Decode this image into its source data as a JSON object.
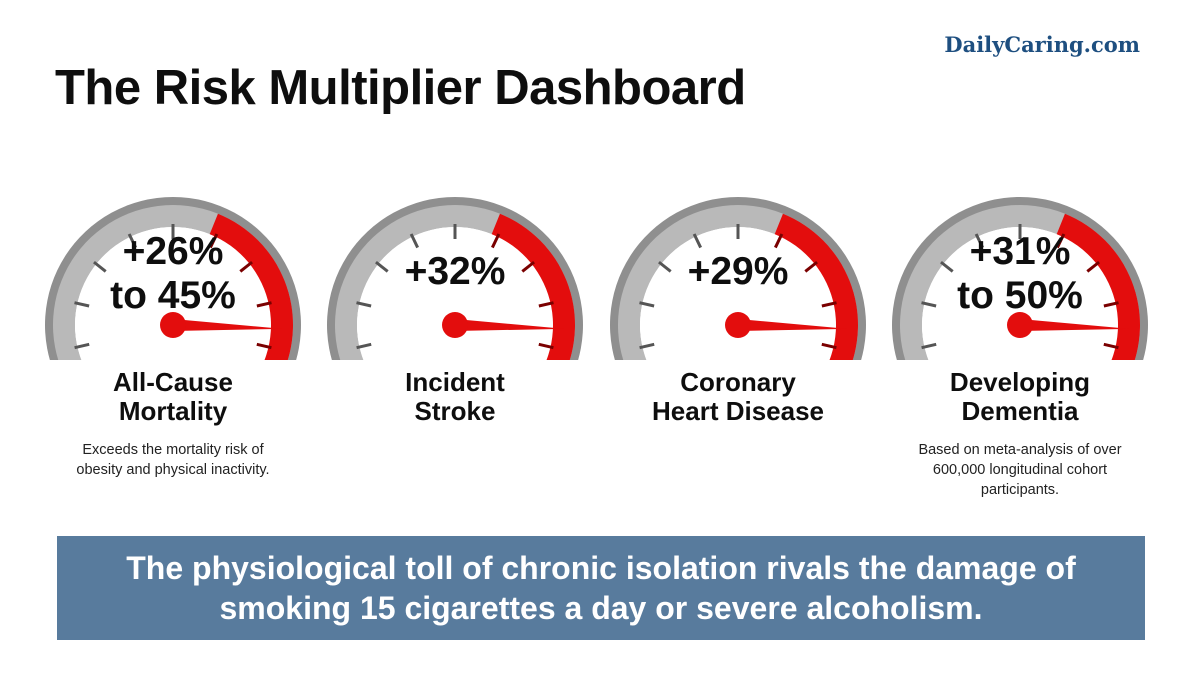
{
  "brand": "DailyCaring.com",
  "title": "The Risk Multiplier Dashboard",
  "gauges": [
    {
      "value": "+26%\nto 45%",
      "label": "All-Cause\nMortality",
      "note": "Exceeds the mortality risk of\nobesity and physical inactivity.",
      "level": 0.9
    },
    {
      "value": "+32%",
      "label": "Incident\nStroke",
      "note": "",
      "level": 0.9
    },
    {
      "value": "+29%",
      "label": "Coronary\nHeart Disease",
      "note": "",
      "level": 0.9
    },
    {
      "value": "+31%\nto 50%",
      "label": "Developing\nDementia",
      "note": "Based on meta-analysis of over\n600,000 longitudinal cohort\nparticipants.",
      "level": 0.9
    }
  ],
  "banner": "The physiological toll of chronic isolation rivals the damage of\nsmoking 15 cigarettes a day or severe alcoholism.",
  "colors": {
    "accent_red": "#e30d0d",
    "gauge_gray": "#b9b9b9",
    "banner_bg": "#587b9d",
    "brand": "#1e4f80"
  },
  "icons": [
    "gauge-dial-icon"
  ]
}
